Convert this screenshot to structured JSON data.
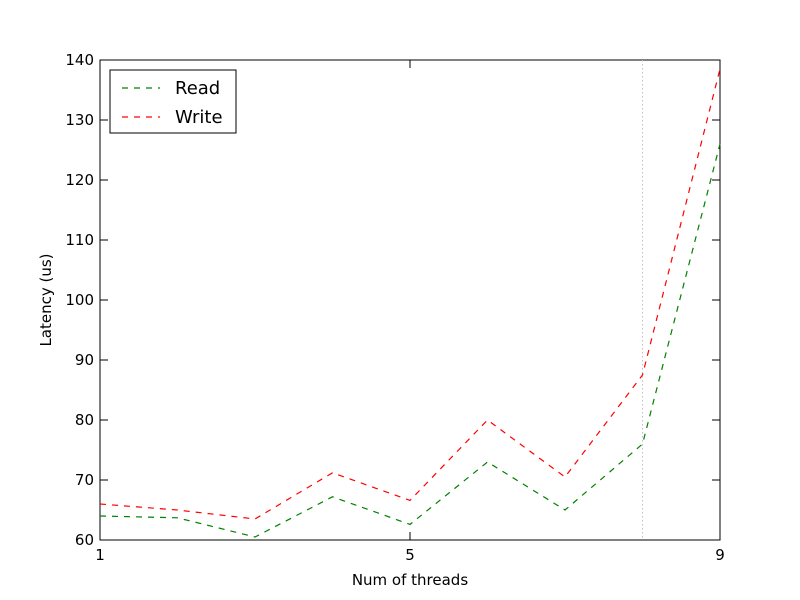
{
  "chart_data": {
    "type": "line",
    "xlabel": "Num of threads",
    "ylabel": "Latency (us)",
    "xlim": [
      1,
      9
    ],
    "ylim": [
      60,
      140
    ],
    "xticks": [
      "1",
      "5",
      "9"
    ],
    "yticks": [
      "60",
      "70",
      "80",
      "90",
      "100",
      "110",
      "120",
      "130",
      "140"
    ],
    "grid": false,
    "legend_position": "top-left",
    "vline_x": 8,
    "vline_color": "#bfbfbf",
    "series": [
      {
        "name": "Read",
        "color": "#008000",
        "x": [
          1,
          2,
          3,
          4,
          5,
          6,
          7,
          8,
          9
        ],
        "values": [
          64.0,
          63.7,
          60.5,
          67.2,
          62.6,
          73.0,
          65.0,
          76.0,
          126.0
        ]
      },
      {
        "name": "Write",
        "color": "#ff0000",
        "x": [
          1,
          2,
          3,
          4,
          5,
          6,
          7,
          8,
          9
        ],
        "values": [
          66.0,
          65.0,
          63.5,
          71.2,
          66.6,
          80.0,
          70.5,
          87.5,
          138.5
        ]
      }
    ]
  }
}
